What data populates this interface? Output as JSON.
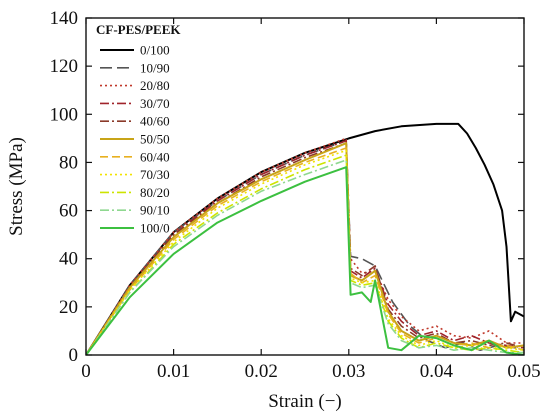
{
  "chart_data": {
    "type": "line",
    "xlabel": "Strain (−)",
    "ylabel": "Stress (MPa)",
    "xlim": [
      0,
      0.05
    ],
    "ylim": [
      0,
      140
    ],
    "xticks": [
      0,
      0.01,
      0.02,
      0.03,
      0.04,
      0.05
    ],
    "xtick_labels": [
      "0",
      "0.01",
      "0.02",
      "0.03",
      "0.04",
      "0.05"
    ],
    "yticks": [
      0,
      20,
      40,
      60,
      80,
      100,
      120,
      140
    ],
    "ytick_labels": [
      "0",
      "20",
      "40",
      "60",
      "80",
      "100",
      "120",
      "140"
    ],
    "grid": false,
    "legend_title": "CF-PES/PEEK",
    "legend_position": "top-left",
    "series": [
      {
        "name": "0/100",
        "color": "#000000",
        "dash": "solid",
        "points": [
          [
            0,
            0
          ],
          [
            0.005,
            29
          ],
          [
            0.01,
            51
          ],
          [
            0.015,
            65
          ],
          [
            0.02,
            76
          ],
          [
            0.025,
            84
          ],
          [
            0.03,
            90
          ],
          [
            0.033,
            93
          ],
          [
            0.036,
            95
          ],
          [
            0.04,
            96
          ],
          [
            0.0425,
            96
          ],
          [
            0.0435,
            92
          ],
          [
            0.0445,
            86
          ],
          [
            0.0455,
            79
          ],
          [
            0.0465,
            71
          ],
          [
            0.0475,
            60
          ],
          [
            0.048,
            45
          ],
          [
            0.0485,
            14
          ],
          [
            0.049,
            18
          ],
          [
            0.05,
            16
          ]
        ]
      },
      {
        "name": "10/90",
        "color": "#555555",
        "dash": "longdash",
        "points": [
          [
            0,
            0
          ],
          [
            0.005,
            29
          ],
          [
            0.01,
            51
          ],
          [
            0.015,
            64
          ],
          [
            0.02,
            75
          ],
          [
            0.025,
            83
          ],
          [
            0.0297,
            89
          ],
          [
            0.0302,
            41
          ],
          [
            0.0315,
            40
          ],
          [
            0.033,
            37
          ],
          [
            0.035,
            22
          ],
          [
            0.037,
            12
          ],
          [
            0.039,
            6
          ],
          [
            0.041,
            3
          ],
          [
            0.043,
            5
          ],
          [
            0.045,
            2
          ],
          [
            0.047,
            4
          ],
          [
            0.049,
            3
          ],
          [
            0.05,
            2
          ]
        ]
      },
      {
        "name": "20/80",
        "color": "#c0392b",
        "dash": "dotted",
        "points": [
          [
            0,
            0
          ],
          [
            0.005,
            29
          ],
          [
            0.01,
            51
          ],
          [
            0.015,
            65
          ],
          [
            0.02,
            76
          ],
          [
            0.025,
            84
          ],
          [
            0.0297,
            90
          ],
          [
            0.0302,
            40
          ],
          [
            0.0315,
            34
          ],
          [
            0.033,
            35
          ],
          [
            0.0345,
            23
          ],
          [
            0.036,
            16
          ],
          [
            0.038,
            10
          ],
          [
            0.04,
            12
          ],
          [
            0.042,
            8
          ],
          [
            0.044,
            7
          ],
          [
            0.046,
            10
          ],
          [
            0.048,
            5
          ],
          [
            0.05,
            5
          ]
        ]
      },
      {
        "name": "30/70",
        "color": "#a0242b",
        "dash": "dashdot",
        "points": [
          [
            0,
            0
          ],
          [
            0.005,
            28
          ],
          [
            0.01,
            50
          ],
          [
            0.015,
            64
          ],
          [
            0.02,
            75
          ],
          [
            0.025,
            83
          ],
          [
            0.0297,
            89
          ],
          [
            0.0302,
            35
          ],
          [
            0.0315,
            32
          ],
          [
            0.033,
            36
          ],
          [
            0.0345,
            21
          ],
          [
            0.036,
            14
          ],
          [
            0.038,
            8
          ],
          [
            0.04,
            10
          ],
          [
            0.042,
            6
          ],
          [
            0.044,
            8
          ],
          [
            0.046,
            5
          ],
          [
            0.048,
            4
          ],
          [
            0.05,
            3
          ]
        ]
      },
      {
        "name": "40/60",
        "color": "#8b3a2a",
        "dash": "dashdot",
        "points": [
          [
            0,
            0
          ],
          [
            0.005,
            28
          ],
          [
            0.01,
            50
          ],
          [
            0.015,
            63
          ],
          [
            0.02,
            74
          ],
          [
            0.025,
            82
          ],
          [
            0.0297,
            88
          ],
          [
            0.0302,
            36
          ],
          [
            0.0315,
            33
          ],
          [
            0.033,
            37
          ],
          [
            0.0345,
            19
          ],
          [
            0.036,
            12
          ],
          [
            0.038,
            7
          ],
          [
            0.04,
            9
          ],
          [
            0.042,
            5
          ],
          [
            0.044,
            6
          ],
          [
            0.046,
            4
          ],
          [
            0.048,
            5
          ],
          [
            0.05,
            3
          ]
        ]
      },
      {
        "name": "50/50",
        "color": "#c8a418",
        "dash": "solid",
        "points": [
          [
            0,
            0
          ],
          [
            0.005,
            28
          ],
          [
            0.01,
            49
          ],
          [
            0.015,
            63
          ],
          [
            0.02,
            73
          ],
          [
            0.025,
            81
          ],
          [
            0.0297,
            88
          ],
          [
            0.0302,
            33
          ],
          [
            0.0315,
            31
          ],
          [
            0.033,
            35
          ],
          [
            0.0345,
            18
          ],
          [
            0.036,
            10
          ],
          [
            0.038,
            6
          ],
          [
            0.04,
            8
          ],
          [
            0.042,
            5
          ],
          [
            0.044,
            4
          ],
          [
            0.046,
            6
          ],
          [
            0.048,
            3
          ],
          [
            0.05,
            4
          ]
        ]
      },
      {
        "name": "60/40",
        "color": "#e8b020",
        "dash": "dashed",
        "points": [
          [
            0,
            0
          ],
          [
            0.005,
            27
          ],
          [
            0.01,
            48
          ],
          [
            0.015,
            62
          ],
          [
            0.02,
            72
          ],
          [
            0.025,
            80
          ],
          [
            0.0297,
            86
          ],
          [
            0.0302,
            34
          ],
          [
            0.0315,
            30
          ],
          [
            0.033,
            33
          ],
          [
            0.0345,
            17
          ],
          [
            0.036,
            9
          ],
          [
            0.038,
            5
          ],
          [
            0.04,
            7
          ],
          [
            0.042,
            4
          ],
          [
            0.044,
            5
          ],
          [
            0.046,
            3
          ],
          [
            0.048,
            4
          ],
          [
            0.05,
            2
          ]
        ]
      },
      {
        "name": "70/30",
        "color": "#f2e300",
        "dash": "dotted",
        "points": [
          [
            0,
            0
          ],
          [
            0.005,
            27
          ],
          [
            0.01,
            47
          ],
          [
            0.015,
            61
          ],
          [
            0.02,
            71
          ],
          [
            0.025,
            79
          ],
          [
            0.0297,
            85
          ],
          [
            0.0302,
            32
          ],
          [
            0.0315,
            30
          ],
          [
            0.033,
            31
          ],
          [
            0.0345,
            15
          ],
          [
            0.036,
            8
          ],
          [
            0.038,
            4
          ],
          [
            0.04,
            6
          ],
          [
            0.042,
            3
          ],
          [
            0.044,
            4
          ],
          [
            0.046,
            2
          ],
          [
            0.048,
            3
          ],
          [
            0.05,
            2
          ]
        ]
      },
      {
        "name": "80/20",
        "color": "#cde400",
        "dash": "dashdot",
        "points": [
          [
            0,
            0
          ],
          [
            0.005,
            26
          ],
          [
            0.01,
            46
          ],
          [
            0.015,
            59
          ],
          [
            0.02,
            69
          ],
          [
            0.025,
            77
          ],
          [
            0.0297,
            83
          ],
          [
            0.0302,
            31
          ],
          [
            0.0315,
            29
          ],
          [
            0.033,
            30
          ],
          [
            0.0345,
            14
          ],
          [
            0.036,
            7
          ],
          [
            0.038,
            3
          ],
          [
            0.04,
            5
          ],
          [
            0.042,
            3
          ],
          [
            0.044,
            2
          ],
          [
            0.046,
            3
          ],
          [
            0.048,
            2
          ],
          [
            0.05,
            1
          ]
        ]
      },
      {
        "name": "90/10",
        "color": "#8fd890",
        "dash": "dashdot",
        "points": [
          [
            0,
            0
          ],
          [
            0.005,
            26
          ],
          [
            0.01,
            45
          ],
          [
            0.015,
            58
          ],
          [
            0.02,
            68
          ],
          [
            0.025,
            75
          ],
          [
            0.0297,
            81
          ],
          [
            0.0302,
            30
          ],
          [
            0.0315,
            28
          ],
          [
            0.033,
            29
          ],
          [
            0.0345,
            13
          ],
          [
            0.036,
            6
          ],
          [
            0.038,
            3
          ],
          [
            0.04,
            4
          ],
          [
            0.042,
            2
          ],
          [
            0.044,
            3
          ],
          [
            0.046,
            2
          ],
          [
            0.048,
            1
          ],
          [
            0.05,
            1
          ]
        ]
      },
      {
        "name": "100/0",
        "color": "#3cc040",
        "dash": "solid",
        "points": [
          [
            0,
            0
          ],
          [
            0.005,
            24
          ],
          [
            0.01,
            42
          ],
          [
            0.015,
            55
          ],
          [
            0.02,
            64
          ],
          [
            0.025,
            72
          ],
          [
            0.0297,
            78
          ],
          [
            0.0302,
            25
          ],
          [
            0.0315,
            26
          ],
          [
            0.0325,
            22
          ],
          [
            0.033,
            31
          ],
          [
            0.0345,
            3
          ],
          [
            0.036,
            2
          ],
          [
            0.038,
            8
          ],
          [
            0.04,
            7
          ],
          [
            0.042,
            4
          ],
          [
            0.044,
            2
          ],
          [
            0.046,
            6
          ],
          [
            0.048,
            1
          ],
          [
            0.05,
            0
          ]
        ]
      }
    ]
  }
}
